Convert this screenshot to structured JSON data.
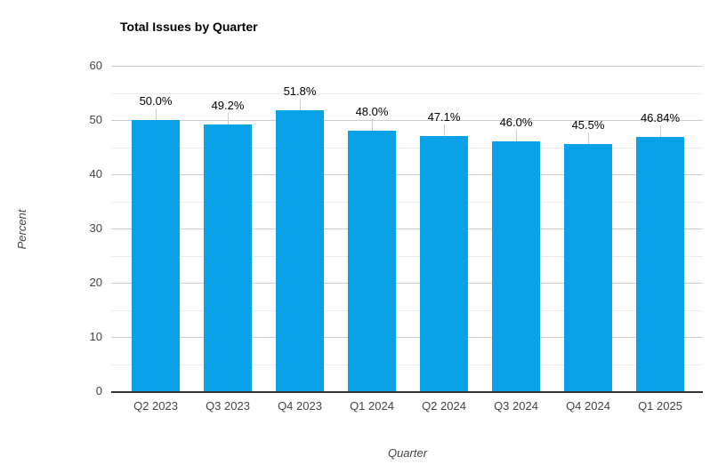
{
  "chart_data": {
    "type": "bar",
    "title": "Total Issues by Quarter",
    "xlabel": "Quarter",
    "ylabel": "Percent",
    "categories": [
      "Q2 2023",
      "Q3 2023",
      "Q4 2023",
      "Q1 2024",
      "Q2 2024",
      "Q3 2024",
      "Q4 2024",
      "Q1 2025"
    ],
    "values": [
      50.0,
      49.2,
      51.8,
      48.0,
      47.1,
      46.0,
      45.5,
      46.84
    ],
    "data_labels": [
      "50.0%",
      "49.2%",
      "51.8%",
      "48.0%",
      "47.1%",
      "46.0%",
      "45.5%",
      "46.84%"
    ],
    "ylim": [
      0,
      60
    ],
    "y_ticks": [
      0,
      10,
      20,
      30,
      40,
      50,
      60
    ],
    "minor_grid_step": 5,
    "grid": true,
    "legend_position": "none",
    "colors": {
      "bar": "#09A2E8",
      "major_gridline": "#cccccc",
      "minor_gridline": "#ebebeb",
      "baseline": "#333333",
      "annotation_stem": "#cccccc",
      "axis_text": "#444444",
      "annotation_text": "#000000",
      "title_text": "#000000"
    }
  }
}
